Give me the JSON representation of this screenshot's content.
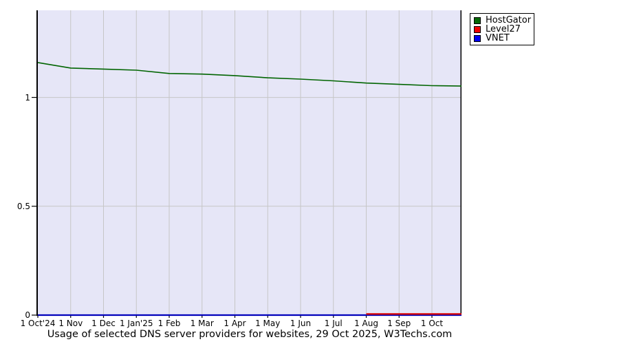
{
  "caption": "Usage of selected DNS server providers for websites, 29 Oct 2025, W3Techs.com",
  "legend": {
    "position": "top-right",
    "items": [
      {
        "label": "HostGator",
        "color": "#066806"
      },
      {
        "label": "Level27",
        "color": "#f00000"
      },
      {
        "label": "VNET",
        "color": "#0000f0"
      }
    ]
  },
  "chart_data": {
    "type": "line",
    "title": "Usage of selected DNS server providers for websites",
    "date_label": "29 Oct 2025",
    "source_label": "W3Techs.com",
    "background": "#e6e6f7",
    "gridline_color": "#c6c6c6",
    "axis_color": "#000000",
    "grid": true,
    "legend_position": "top-right",
    "x_tick_labels": [
      "1 Oct'24",
      "1 Nov",
      "1 Dec",
      "1 Jan'25",
      "1 Feb",
      "1 Mar",
      "1 Apr",
      "1 May",
      "1 Jun",
      "1 Jul",
      "1 Aug",
      "1 Sep",
      "1 Oct"
    ],
    "y_ticks": [
      0,
      0.5,
      1
    ],
    "y_tick_labels": [
      "0",
      "0.5",
      "1"
    ],
    "ylim": [
      0,
      1.4
    ],
    "xlim_months": [
      0,
      12.9
    ],
    "series": [
      {
        "name": "HostGator",
        "color": "#006400",
        "x_months": [
          0,
          1,
          2,
          3,
          4,
          5,
          6,
          7,
          8,
          9,
          10,
          11,
          12,
          12.9
        ],
        "values": [
          1.16,
          1.135,
          1.13,
          1.125,
          1.11,
          1.107,
          1.1,
          1.09,
          1.084,
          1.076,
          1.066,
          1.06,
          1.054,
          1.052
        ]
      },
      {
        "name": "Level27",
        "color": "#dd0000",
        "x_months": [
          10,
          11,
          12,
          12.9
        ],
        "values": [
          0.005,
          0.005,
          0.005,
          0.005
        ]
      },
      {
        "name": "VNET",
        "color": "#0000bb",
        "x_months": [
          0,
          12.9
        ],
        "values": [
          0,
          0
        ]
      }
    ]
  }
}
